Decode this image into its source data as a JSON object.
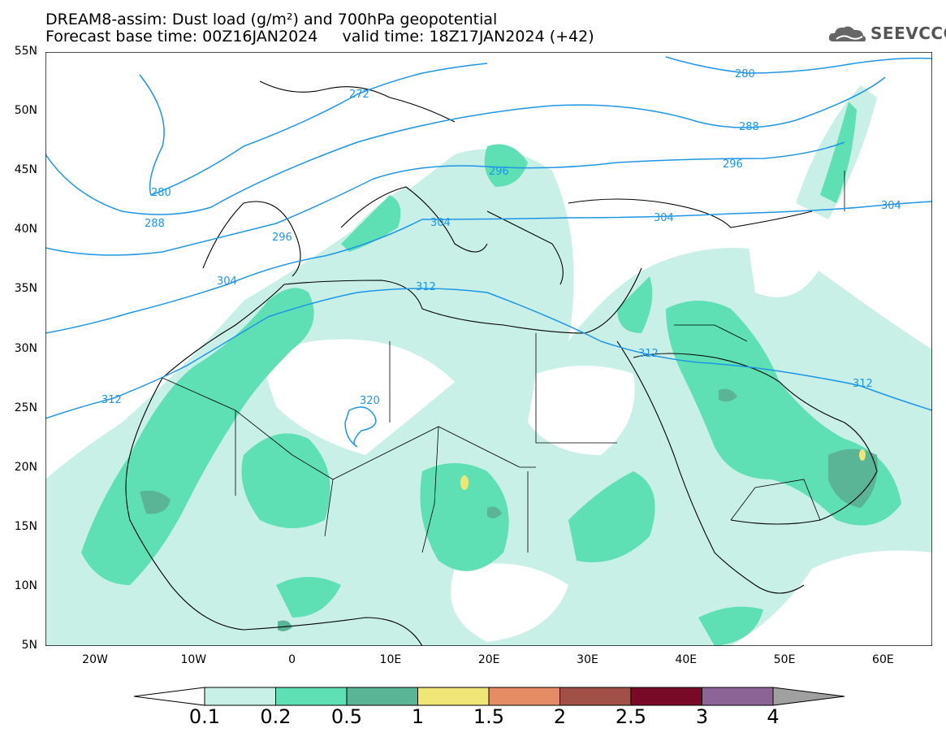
{
  "header": {
    "title_line1": "DREAM8-assim: Dust load (g/m²) and 700hPa geopotential",
    "title_line2": "Forecast base time: 00Z16JAN2024     valid time: 18Z17JAN2024 (+42)",
    "logo_text": "SEEVCCC"
  },
  "map": {
    "lat_labels": [
      "55N",
      "50N",
      "45N",
      "40N",
      "35N",
      "30N",
      "25N",
      "20N",
      "15N",
      "10N",
      "5N"
    ],
    "lon_labels": [
      "20W",
      "10W",
      "0",
      "10E",
      "20E",
      "30E",
      "40E",
      "50E",
      "60E"
    ],
    "contour_labels": [
      "272",
      "280",
      "280",
      "288",
      "288",
      "296",
      "296",
      "296",
      "304",
      "304",
      "304",
      "312",
      "312",
      "312",
      "312",
      "320"
    ]
  },
  "colorbar": {
    "labels": [
      "0.1",
      "0.2",
      "0.5",
      "1",
      "1.5",
      "2",
      "2.5",
      "3",
      "4"
    ],
    "colors": [
      "#c8f0e6",
      "#5ee0b4",
      "#5ab496",
      "#f0e678",
      "#e68c64",
      "#a05046",
      "#780a28",
      "#8c6496",
      "#a0a0a0"
    ]
  }
}
